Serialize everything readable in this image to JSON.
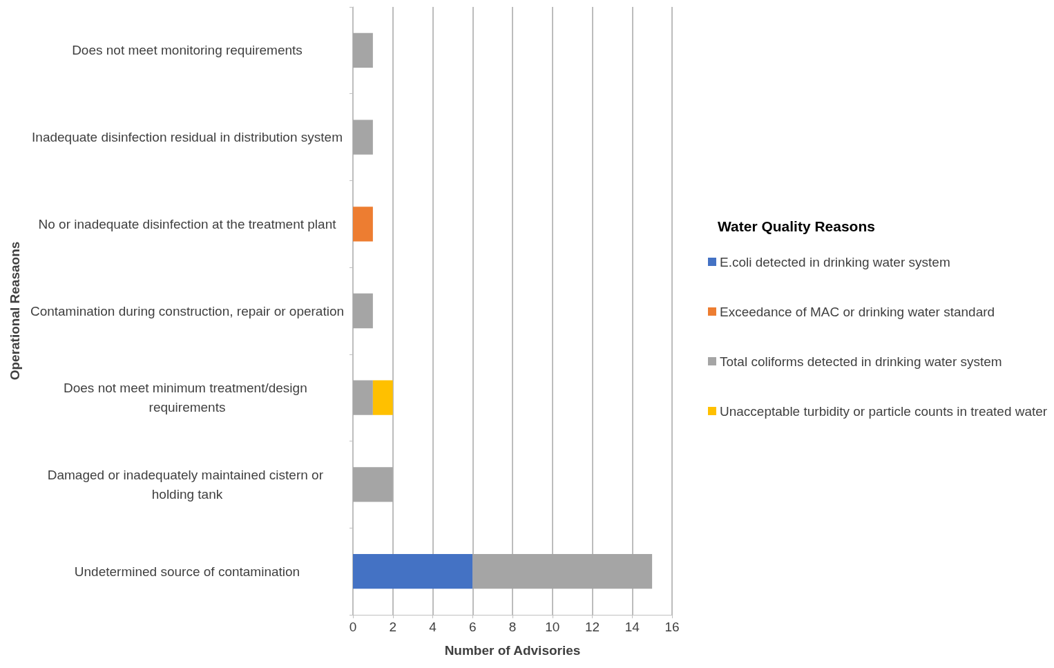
{
  "chart_data": {
    "type": "bar",
    "orientation": "horizontal",
    "stacked": true,
    "categories": [
      "Does not meet monitoring requirements",
      "Inadequate disinfection residual in distribution system",
      "No or inadequate disinfection at the treatment plant",
      "Contamination during construction, repair or operation",
      "Does not meet minimum treatment/design requirements",
      "Damaged or inadequately maintained cistern or holding tank",
      "Undetermined source of contamination"
    ],
    "series": [
      {
        "name": "E.coli detected in drinking water system",
        "color": "#4472c4",
        "values": [
          null,
          null,
          null,
          null,
          null,
          null,
          6
        ]
      },
      {
        "name": "Exceedance of MAC or drinking water standard",
        "color": "#ed7d31",
        "values": [
          null,
          null,
          1,
          null,
          null,
          null,
          null
        ]
      },
      {
        "name": "Total coliforms detected in drinking water system",
        "color": "#a5a5a5",
        "values": [
          1,
          1,
          null,
          1,
          1,
          2,
          9
        ]
      },
      {
        "name": "Unacceptable turbidity or particle counts in treated water",
        "color": "#ffc000",
        "values": [
          null,
          null,
          null,
          null,
          1,
          null,
          null
        ]
      }
    ],
    "xlim": [
      0,
      16
    ],
    "xticks": [
      0,
      2,
      4,
      6,
      8,
      10,
      12,
      14,
      16
    ],
    "xlabel": "Number of Advisories",
    "ylabel": "Operational Reasaons",
    "legend_title": "Water Quality Reasons",
    "legend": "right",
    "grid": "x"
  }
}
